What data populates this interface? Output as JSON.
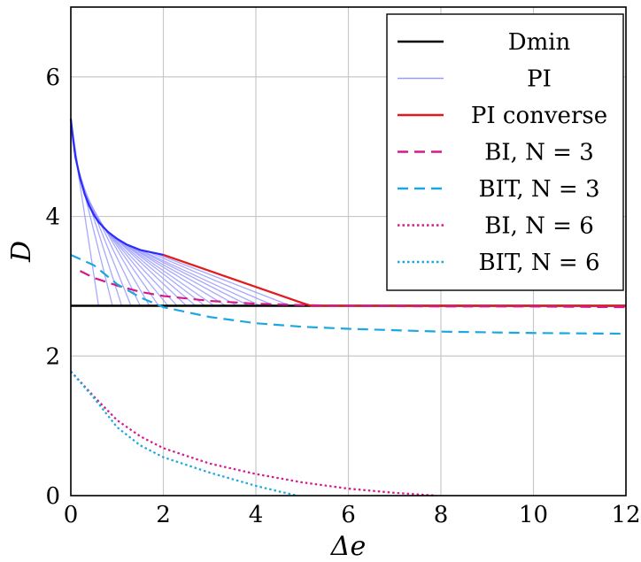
{
  "chart_data": {
    "type": "line",
    "title": "",
    "xlabel": "Δe",
    "ylabel": "D",
    "xlim": [
      0,
      12
    ],
    "ylim": [
      0,
      7
    ],
    "xticks": [
      "0",
      "2",
      "4",
      "6",
      "8",
      "10",
      "12"
    ],
    "yticks": [
      "0",
      "2",
      "4",
      "6"
    ],
    "grid": true,
    "legend_position": "top-right",
    "legend": [
      {
        "label": "Dmin",
        "color": "#000000",
        "style": "solid"
      },
      {
        "label": "PI",
        "color": "#9999ff",
        "style": "solid-thin"
      },
      {
        "label": "PI converse",
        "color": "#e31a1c",
        "style": "solid"
      },
      {
        "label": "BI, N = 3",
        "color": "#d6198a",
        "style": "dashed"
      },
      {
        "label": "BIT, N = 3",
        "color": "#1ba7e0",
        "style": "dashed"
      },
      {
        "label": "BI, N = 6",
        "color": "#d6198a",
        "style": "dotted"
      },
      {
        "label": "BIT, N = 6",
        "color": "#1ba7e0",
        "style": "dotted"
      }
    ],
    "series": [
      {
        "name": "Dmin",
        "color": "#000000",
        "style": "solid",
        "x": [
          0,
          12
        ],
        "y": [
          2.72,
          2.72
        ]
      },
      {
        "name": "PI converse",
        "color": "#e31a1c",
        "style": "solid",
        "x": [
          2,
          3,
          4,
          5,
          5.2,
          6,
          8,
          10,
          12
        ],
        "y": [
          3.45,
          3.22,
          2.99,
          2.76,
          2.72,
          2.72,
          2.72,
          2.72,
          2.72
        ]
      },
      {
        "name": "BI, N = 3",
        "color": "#d6198a",
        "style": "dashed",
        "x": [
          0.2,
          0.5,
          1,
          1.5,
          2,
          3,
          4,
          5,
          6,
          8,
          10,
          12
        ],
        "y": [
          3.22,
          3.12,
          3.01,
          2.92,
          2.86,
          2.79,
          2.75,
          2.73,
          2.72,
          2.71,
          2.71,
          2.7
        ]
      },
      {
        "name": "BIT, N = 3",
        "color": "#1ba7e0",
        "style": "dashed",
        "x": [
          0,
          0.5,
          1,
          1.5,
          2,
          3,
          4,
          5,
          6,
          8,
          10,
          12
        ],
        "y": [
          3.45,
          3.3,
          3.03,
          2.84,
          2.7,
          2.56,
          2.47,
          2.42,
          2.39,
          2.35,
          2.33,
          2.32
        ]
      },
      {
        "name": "BI, N = 6",
        "color": "#d6198a",
        "style": "dotted",
        "x": [
          0,
          0.5,
          1,
          1.5,
          2,
          3,
          4,
          5,
          6,
          7,
          7.9
        ],
        "y": [
          1.78,
          1.42,
          1.08,
          0.85,
          0.68,
          0.46,
          0.31,
          0.19,
          0.1,
          0.04,
          0.0
        ]
      },
      {
        "name": "BIT, N = 6",
        "color": "#1ba7e0",
        "style": "dotted",
        "x": [
          0,
          0.5,
          1,
          1.5,
          2,
          3,
          4,
          4.5,
          4.9
        ],
        "y": [
          1.78,
          1.4,
          0.98,
          0.72,
          0.55,
          0.33,
          0.14,
          0.06,
          0.0
        ]
      }
    ],
    "pi_family": {
      "color": "#9999ff",
      "start_x": [
        0,
        0.05,
        0.1,
        0.15,
        0.2,
        0.25,
        0.3,
        0.4,
        0.5,
        0.6,
        0.7,
        0.8,
        0.9,
        1.0,
        1.1,
        1.2,
        1.35,
        1.5,
        1.65,
        1.8,
        2.0
      ],
      "end_x": [
        0,
        0.6,
        0.9,
        1.1,
        1.3,
        1.5,
        1.7,
        1.9,
        2.1,
        2.3,
        2.5,
        2.7,
        2.9,
        3.1,
        3.35,
        3.6,
        3.85,
        4.1,
        4.4,
        4.75,
        5.2
      ],
      "envelope_x": [
        0,
        0.05,
        0.1,
        0.2,
        0.3,
        0.4,
        0.5,
        0.6,
        0.8,
        1.0,
        1.2,
        1.5,
        2.0
      ],
      "envelope_y": [
        5.4,
        5.1,
        4.85,
        4.55,
        4.32,
        4.15,
        4.02,
        3.92,
        3.78,
        3.68,
        3.6,
        3.52,
        3.45
      ]
    }
  }
}
